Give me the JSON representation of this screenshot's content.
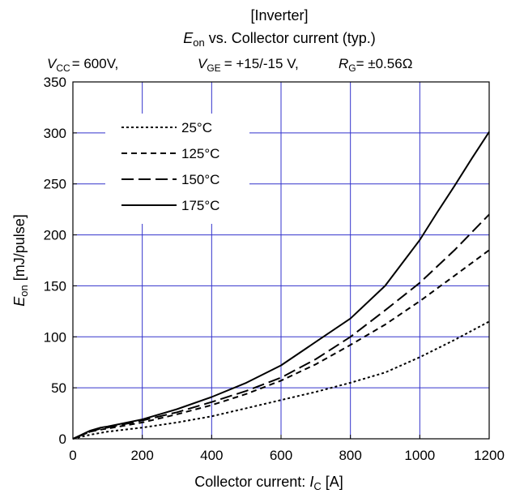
{
  "chart_data": {
    "type": "line",
    "title": {
      "line1": "[Inverter]",
      "line2_sym": "E",
      "line2_sub": "on",
      "line2_rest": " vs. Collector current  (typ.)"
    },
    "conditions": {
      "vcc_sym": "V",
      "vcc_sub": "CC",
      "vcc_val": "= 600V,",
      "vge_sym": "V",
      "vge_sub": "GE",
      "vge_val": "= +15/-15 V,",
      "rg_sym": "R",
      "rg_sub": "G",
      "rg_val": "=   ±0.56Ω"
    },
    "xlabel": {
      "text": "Collector current: ",
      "sym": "I",
      "sub": "C",
      "unit": " [A]"
    },
    "ylabel": {
      "sym": "E",
      "sub": "on",
      "unit": " [mJ/pulse]"
    },
    "xlim": [
      0,
      1200
    ],
    "ylim": [
      0,
      350
    ],
    "xticks": [
      0,
      200,
      400,
      600,
      800,
      1000,
      1200
    ],
    "yticks": [
      0,
      50,
      100,
      150,
      200,
      250,
      300,
      350
    ],
    "grid": true,
    "grid_color": "#3333cc",
    "legend_position": "top-left",
    "series": [
      {
        "name": "25°C",
        "dash": "dotted",
        "x": [
          0,
          50,
          100,
          200,
          300,
          400,
          500,
          600,
          700,
          800,
          900,
          1000,
          1100,
          1200
        ],
        "y": [
          0,
          4,
          7,
          11,
          16,
          22,
          30,
          38,
          46,
          55,
          65,
          80,
          97,
          115
        ]
      },
      {
        "name": "125°C",
        "dash": "short",
        "x": [
          0,
          50,
          80,
          100,
          200,
          300,
          400,
          500,
          600,
          700,
          800,
          900,
          1000,
          1100,
          1200
        ],
        "y": [
          0,
          7,
          9,
          10,
          16,
          24,
          33,
          44,
          57,
          73,
          92,
          112,
          135,
          160,
          185
        ]
      },
      {
        "name": "150°C",
        "dash": "long",
        "x": [
          0,
          50,
          80,
          100,
          200,
          300,
          400,
          500,
          600,
          700,
          800,
          900,
          1000,
          1100,
          1200
        ],
        "y": [
          0,
          7,
          10,
          11,
          18,
          26,
          36,
          47,
          60,
          78,
          100,
          126,
          153,
          185,
          220
        ]
      },
      {
        "name": "175°C",
        "dash": "solid",
        "x": [
          0,
          50,
          80,
          100,
          200,
          300,
          400,
          500,
          600,
          700,
          800,
          900,
          1000,
          1050,
          1100,
          1150,
          1200
        ],
        "y": [
          0,
          8,
          11,
          12,
          19,
          29,
          41,
          55,
          72,
          95,
          118,
          150,
          195,
          222,
          248,
          275,
          301
        ]
      }
    ]
  }
}
